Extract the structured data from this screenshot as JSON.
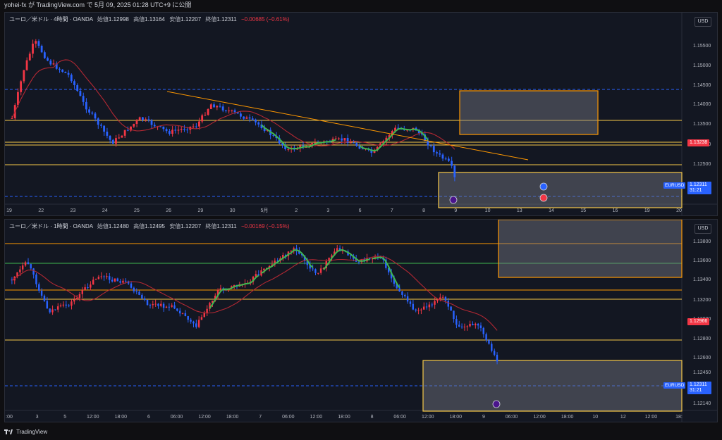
{
  "header": {
    "publish_line": "yohei-fx が TradingView.com で 5月 09, 2025 01:28 UTC+9 に公開"
  },
  "chart1": {
    "symbol_line": "ユーロ／米ドル · 4時間 · OANDA",
    "open_label": "始値",
    "open": "1.12998",
    "high_label": "高値",
    "high": "1.13164",
    "low_label": "安値",
    "low": "1.12207",
    "close_label": "終値",
    "close": "1.12311",
    "change": "−0.00685 (−0.61%)",
    "currency": "USD",
    "y_ticks": [
      "1.15500",
      "1.15000",
      "1.14500",
      "1.14000",
      "1.13500",
      "1.13000",
      "1.12500",
      "1.12000"
    ],
    "x_ticks": [
      "19",
      "22",
      "23",
      "24",
      "25",
      "26",
      "29",
      "30",
      "5月",
      "2",
      "3",
      "6",
      "7",
      "8",
      "9",
      "10",
      "13",
      "14",
      "15",
      "16",
      "19",
      "20"
    ],
    "price_tag_red": "1.13238",
    "symbol_tag": "EURUSD",
    "price_tag_blue": "1.12311",
    "countdown": "31:21"
  },
  "chart2": {
    "symbol_line": "ユーロ／米ドル · 1時間 · OANDA",
    "open_label": "始値",
    "open": "1.12480",
    "high_label": "高値",
    "high": "1.12495",
    "low_label": "安値",
    "low": "1.12207",
    "close_label": "終値",
    "close": "1.12311",
    "change": "−0.00169 (−0.15%)",
    "currency": "USD",
    "y_ticks": [
      "1.13800",
      "1.13600",
      "1.13400",
      "1.13200",
      "1.13000",
      "1.12800",
      "1.12600",
      "1.12450",
      "1.12140"
    ],
    "x_ticks": [
      ":00",
      "3",
      "5",
      "12:00",
      "18:00",
      "6",
      "06:00",
      "12:00",
      "18:00",
      "7",
      "06:00",
      "12:00",
      "18:00",
      "8",
      "06:00",
      "12:00",
      "18:00",
      "9",
      "06:00",
      "12:00",
      "18:00",
      "10",
      "12",
      "12:00",
      "18:"
    ],
    "price_tag_red": "1.12966",
    "symbol_tag": "EURUSD",
    "price_tag_blue": "1.12311",
    "countdown": "31:21"
  },
  "footer": {
    "brand": "TradingView"
  },
  "colors": {
    "up": "#f23645",
    "down": "#2962ff",
    "bg": "#131722",
    "hline": "#f7c948",
    "box": "#ff9800",
    "ma": "#b22833",
    "trend": "#3fb950"
  }
}
